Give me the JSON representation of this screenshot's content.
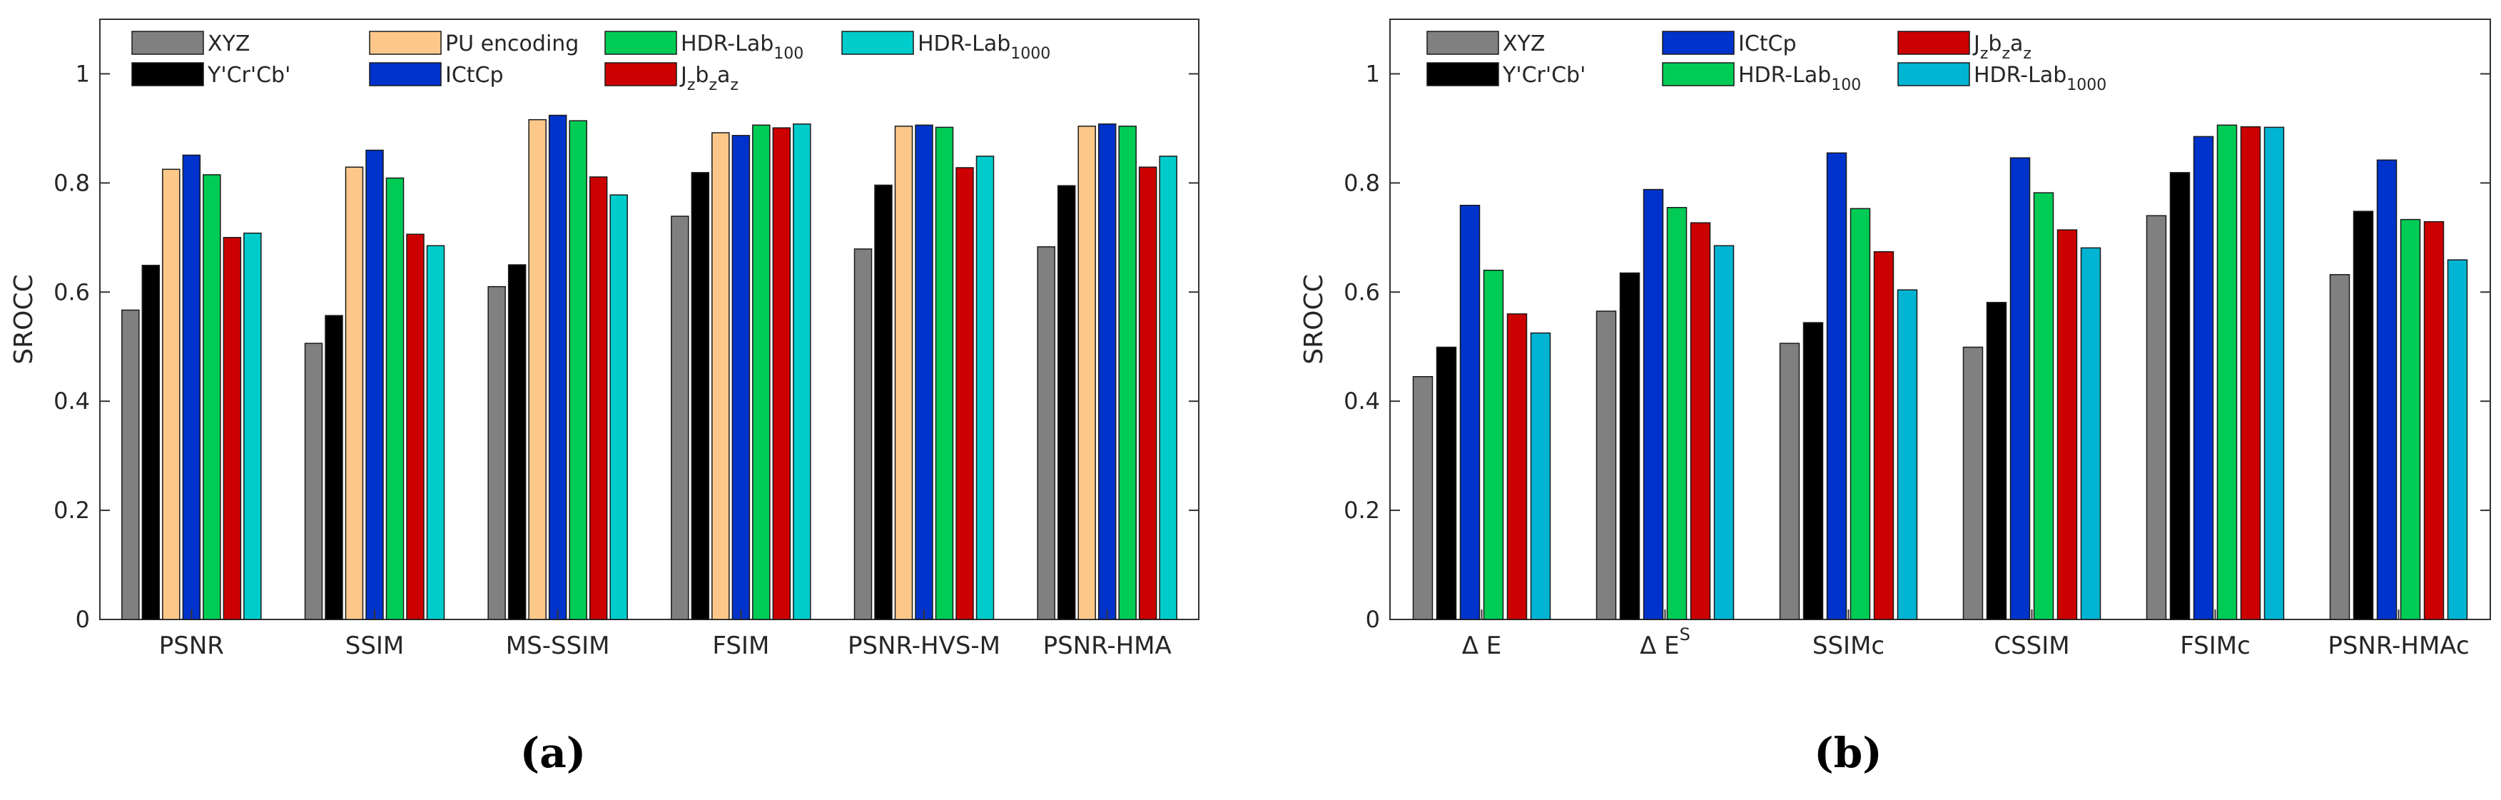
{
  "chart_data": [
    {
      "type": "bar",
      "caption": "(a)",
      "ylabel": "SROCC",
      "xlabel": "",
      "ylim": [
        0,
        1.1
      ],
      "yticks": [
        "0",
        "0.2",
        "0.4",
        "0.6",
        "0.8",
        "1"
      ],
      "categories": [
        "PSNR",
        "SSIM",
        "MS-SSIM",
        "FSIM",
        "PSNR-HVS-M",
        "PSNR-HMA"
      ],
      "series": [
        {
          "name": "XYZ",
          "color": "#808080",
          "values": [
            0.567,
            0.506,
            0.61,
            0.739,
            0.679,
            0.683
          ]
        },
        {
          "name": "Y'Cr'Cb'",
          "color": "#000000",
          "values": [
            0.649,
            0.557,
            0.65,
            0.819,
            0.796,
            0.795
          ]
        },
        {
          "name": "PU encoding",
          "color": "#fcc88a",
          "values": [
            0.825,
            0.829,
            0.916,
            0.892,
            0.904,
            0.904
          ]
        },
        {
          "name": "ICtCp",
          "color": "#0033cc",
          "values": [
            0.851,
            0.86,
            0.924,
            0.887,
            0.906,
            0.908
          ]
        },
        {
          "name": "HDR-Lab",
          "sub": "100",
          "color": "#00cc55",
          "values": [
            0.815,
            0.809,
            0.914,
            0.906,
            0.902,
            0.904
          ]
        },
        {
          "name": "J",
          "parts": [
            [
              "J",
              ""
            ],
            [
              "z",
              "sub"
            ],
            [
              "b",
              ""
            ],
            [
              "z",
              "sub"
            ],
            [
              "a",
              ""
            ],
            [
              "z",
              "sub"
            ]
          ],
          "color": "#cc0000",
          "values": [
            0.7,
            0.706,
            0.811,
            0.901,
            0.828,
            0.829
          ]
        },
        {
          "name": "HDR-Lab",
          "sub": "1000",
          "color": "#00cccc",
          "values": [
            0.708,
            0.685,
            0.778,
            0.908,
            0.849,
            0.849
          ]
        }
      ],
      "legend_order": [
        0,
        2,
        4,
        6,
        1,
        3,
        5
      ]
    },
    {
      "type": "bar",
      "caption": "(b)",
      "ylabel": "SROCC",
      "xlabel": "",
      "ylim": [
        0,
        1.1
      ],
      "yticks": [
        "0",
        "0.2",
        "0.4",
        "0.6",
        "0.8",
        "1"
      ],
      "categories": [
        {
          "label": "Δ E"
        },
        {
          "label": "Δ E",
          "sup": "S"
        },
        {
          "label": "SSIMc"
        },
        {
          "label": "CSSIM"
        },
        {
          "label": "FSIMc"
        },
        {
          "label": "PSNR-HMAc"
        }
      ],
      "series": [
        {
          "name": "XYZ",
          "color": "#808080",
          "values": [
            0.445,
            0.565,
            0.506,
            0.499,
            0.74,
            0.632
          ]
        },
        {
          "name": "Y'Cr'Cb'",
          "color": "#000000",
          "values": [
            0.499,
            0.635,
            0.544,
            0.581,
            0.819,
            0.748
          ]
        },
        {
          "name": "ICtCp",
          "color": "#0033cc",
          "values": [
            0.759,
            0.788,
            0.855,
            0.846,
            0.885,
            0.842
          ]
        },
        {
          "name": "HDR-Lab",
          "sub": "100",
          "color": "#00cc55",
          "values": [
            0.64,
            0.755,
            0.753,
            0.782,
            0.906,
            0.733
          ]
        },
        {
          "name": "J",
          "parts": [
            [
              "J",
              ""
            ],
            [
              "z",
              "sub"
            ],
            [
              "b",
              ""
            ],
            [
              "z",
              "sub"
            ],
            [
              "a",
              ""
            ],
            [
              "z",
              "sub"
            ]
          ],
          "color": "#cc0000",
          "values": [
            0.56,
            0.727,
            0.674,
            0.714,
            0.903,
            0.729
          ]
        },
        {
          "name": "HDR-Lab",
          "sub": "1000",
          "color": "#00b4d2",
          "values": [
            0.525,
            0.685,
            0.604,
            0.681,
            0.902,
            0.659
          ]
        }
      ],
      "legend_order": [
        0,
        2,
        4,
        1,
        3,
        5
      ]
    }
  ]
}
